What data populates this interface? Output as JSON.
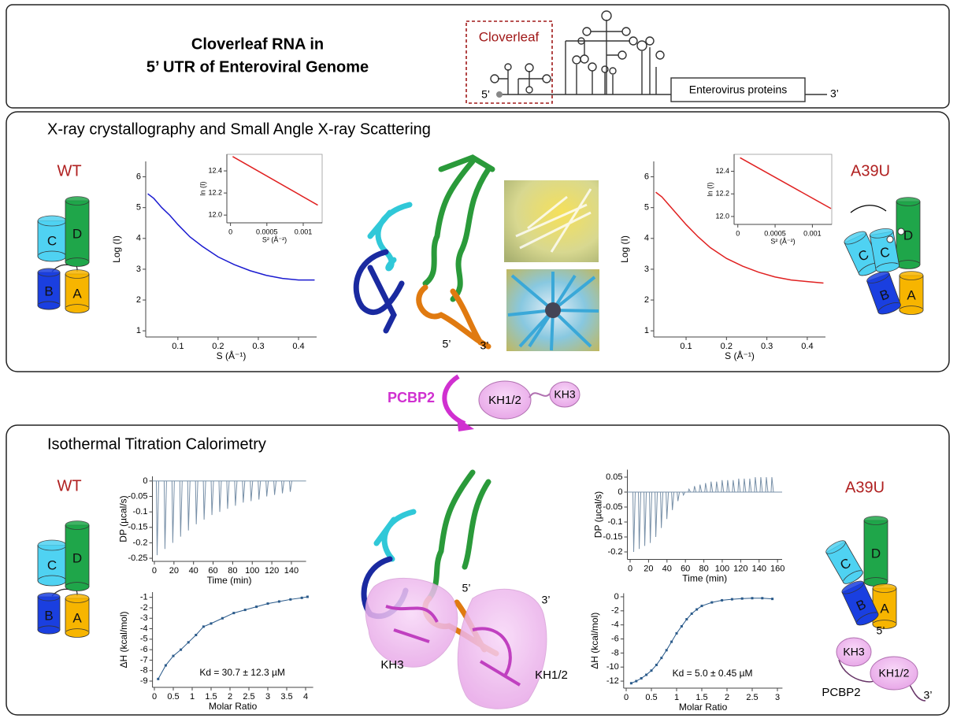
{
  "header": {
    "title_line1": "Cloverleaf RNA in",
    "title_line2": "5’ UTR of Enteroviral Genome",
    "schematic": {
      "cloverleaf": "Cloverleaf",
      "five_prime": "5’",
      "proteins": "Enterovirus proteins",
      "three_prime": "3’"
    }
  },
  "saxs_panel": {
    "title": "X-ray crystallography and Small Angle X-ray Scattering",
    "wt": {
      "label": "WT",
      "cartoon": [
        "C",
        "D",
        "B",
        "A"
      ]
    },
    "mutant": {
      "label": "A39U",
      "cartoon": [
        "C",
        "C",
        "D",
        "B",
        "A"
      ]
    },
    "structure": {
      "five_prime": "5’",
      "three_prime": "3’"
    },
    "plots": [
      {
        "type": "line",
        "xlabel": "S (Å⁻¹)",
        "ylabel": "Log (I)",
        "xlim": [
          0.02,
          0.445
        ],
        "ylim": [
          0.8,
          6.5
        ],
        "xticks": [
          0.1,
          0.2,
          0.3,
          0.4
        ],
        "yticks": [
          1,
          2,
          3,
          4,
          5,
          6
        ],
        "color": "#1a1ad0",
        "x": [
          0.025,
          0.04,
          0.06,
          0.08,
          0.1,
          0.13,
          0.16,
          0.2,
          0.24,
          0.28,
          0.32,
          0.36,
          0.4,
          0.44
        ],
        "y": [
          5.45,
          5.3,
          5.0,
          4.75,
          4.45,
          4.05,
          3.75,
          3.4,
          3.15,
          2.95,
          2.8,
          2.7,
          2.65,
          2.65
        ]
      },
      {
        "type": "line",
        "xlabel": "S² (Å⁻²)",
        "ylabel": "ln (I)",
        "xlim": [
          -5e-05,
          0.00126
        ],
        "ylim": [
          11.93,
          12.55
        ],
        "xticks": [
          0,
          0.0005,
          0.001
        ],
        "yticks": [
          {
            "value": 12,
            "label": "12.0"
          },
          {
            "value": 12.2,
            "label": "12.2"
          },
          {
            "value": 12.4,
            "label": "12.4"
          }
        ],
        "color": "#e02020",
        "x": [
          3e-05,
          0.0012
        ],
        "y": [
          12.53,
          12.09
        ]
      },
      {
        "type": "line",
        "xlabel": "S (Å⁻¹)",
        "ylabel": "Log (I)",
        "xlim": [
          0.02,
          0.445
        ],
        "ylim": [
          0.8,
          6.5
        ],
        "xticks": [
          0.1,
          0.2,
          0.3,
          0.4
        ],
        "yticks": [
          1,
          2,
          3,
          4,
          5,
          6
        ],
        "color": "#e02020",
        "x": [
          0.025,
          0.04,
          0.06,
          0.08,
          0.1,
          0.13,
          0.16,
          0.2,
          0.24,
          0.28,
          0.32,
          0.36,
          0.4,
          0.44
        ],
        "y": [
          5.5,
          5.35,
          5.05,
          4.75,
          4.45,
          4.05,
          3.7,
          3.35,
          3.1,
          2.9,
          2.75,
          2.65,
          2.6,
          2.55
        ]
      },
      {
        "type": "line",
        "xlabel": "S² (Å⁻²)",
        "ylabel": "ln (I)",
        "xlim": [
          -5e-05,
          0.00126
        ],
        "ylim": [
          11.93,
          12.55
        ],
        "xticks": [
          0,
          0.0005,
          0.001
        ],
        "yticks": [
          {
            "value": 12,
            "label": "12.0"
          },
          {
            "value": 12.2,
            "label": "12.2"
          },
          {
            "value": 12.4,
            "label": "12.4"
          }
        ],
        "color": "#e02020",
        "x": [
          3e-05,
          0.00125
        ],
        "y": [
          12.52,
          12.07
        ]
      }
    ]
  },
  "binding": {
    "protein": "PCBP2",
    "domains": [
      "KH1/2",
      "KH3"
    ]
  },
  "itc_panel": {
    "title": "Isothermal Titration Calorimetry",
    "wt": {
      "label": "WT",
      "cartoon": [
        "C",
        "D",
        "B",
        "A"
      ]
    },
    "mutant": {
      "label": "A39U",
      "cartoon": [
        "C",
        "D",
        "B",
        "A",
        "5’",
        "KH3",
        "KH1/2",
        "PCBP2",
        "3’"
      ]
    },
    "structure": {
      "five_prime": "5’",
      "three_prime": "3’",
      "kh3": "KH3",
      "kh12": "KH1/2"
    },
    "plots": [
      {
        "type": "spikes",
        "xlabel": "Time (min)",
        "ylabel": "DP (µcal/s)",
        "xlim": [
          -2,
          155
        ],
        "ylim": [
          -0.26,
          0.015
        ],
        "xticks": [
          0,
          20,
          40,
          60,
          80,
          100,
          120,
          140
        ],
        "yticks": [
          0,
          -0.05,
          -0.1,
          -0.15,
          -0.2,
          -0.25
        ],
        "color": "#7890a8",
        "x": [
          2,
          10,
          18,
          26,
          34,
          42,
          50,
          58,
          66,
          74,
          82,
          90,
          98,
          106,
          114,
          122,
          130,
          138
        ],
        "y": [
          -0.24,
          -0.22,
          -0.2,
          -0.18,
          -0.16,
          -0.14,
          -0.125,
          -0.11,
          -0.1,
          -0.09,
          -0.08,
          -0.07,
          -0.065,
          -0.06,
          -0.05,
          -0.045,
          -0.04,
          -0.035
        ]
      },
      {
        "type": "scatter",
        "xlabel": "Molar Ratio",
        "ylabel": "ΔH (kcal/mol)",
        "xlim": [
          -0.05,
          4.2
        ],
        "ylim": [
          -9.6,
          -0.5
        ],
        "xticks": [
          0,
          0.5,
          1,
          1.5,
          2,
          2.5,
          3,
          3.5,
          4
        ],
        "yticks": [
          -1,
          -2,
          -3,
          -4,
          -5,
          -6,
          -7,
          -8,
          -9
        ],
        "color": "#2a5a8a",
        "annotation": "Kd = 30.7 ± 12.3 µM",
        "x": [
          0.1,
          0.3,
          0.5,
          0.7,
          0.9,
          1.1,
          1.3,
          1.5,
          1.8,
          2.1,
          2.4,
          2.7,
          3,
          3.3,
          3.6,
          3.9,
          4.05
        ],
        "y": [
          -8.8,
          -7.5,
          -6.6,
          -6,
          -5.3,
          -4.6,
          -3.8,
          -3.5,
          -3,
          -2.5,
          -2.2,
          -1.9,
          -1.6,
          -1.4,
          -1.2,
          -1.05,
          -0.95
        ]
      },
      {
        "type": "spikes",
        "xlabel": "Time (min)",
        "ylabel": "DP (µcal/s)",
        "xlim": [
          -3,
          165
        ],
        "ylim": [
          -0.225,
          0.075
        ],
        "xticks": [
          0,
          20,
          40,
          60,
          80,
          100,
          120,
          140,
          160
        ],
        "yticks": [
          0.05,
          0,
          -0.05,
          -0.1,
          -0.15,
          -0.2
        ],
        "color": "#7890a8",
        "x": [
          3,
          9,
          15,
          21,
          27,
          33,
          39,
          45,
          51,
          57,
          63,
          69,
          75,
          81,
          87,
          93,
          99,
          105,
          111,
          117,
          123,
          129,
          135,
          141,
          147,
          153
        ],
        "y": [
          -0.2,
          -0.19,
          -0.18,
          -0.17,
          -0.15,
          -0.12,
          -0.09,
          -0.06,
          -0.03,
          -0.01,
          0.01,
          0.02,
          0.025,
          0.03,
          0.035,
          0.035,
          0.04,
          0.04,
          0.04,
          0.045,
          0.045,
          0.045,
          0.05,
          0.05,
          0.05,
          0.05
        ]
      },
      {
        "type": "scatter",
        "xlabel": "Molar Ratio",
        "ylabel": "ΔH (kcal/mol)",
        "xlim": [
          -0.05,
          3.1
        ],
        "ylim": [
          -13,
          0.5
        ],
        "xticks": [
          0,
          0.5,
          1,
          1.5,
          2,
          2.5,
          3
        ],
        "yticks": [
          0,
          -2,
          -4,
          -6,
          -8,
          -10,
          -12
        ],
        "color": "#2a5a8a",
        "annotation": "Kd = 5.0 ± 0.45 µM",
        "x": [
          0.1,
          0.2,
          0.3,
          0.4,
          0.5,
          0.6,
          0.7,
          0.8,
          0.9,
          1.0,
          1.1,
          1.2,
          1.3,
          1.4,
          1.5,
          1.7,
          1.9,
          2.1,
          2.3,
          2.5,
          2.7,
          2.9
        ],
        "y": [
          -12.3,
          -12,
          -11.6,
          -11.1,
          -10.5,
          -9.7,
          -8.7,
          -7.6,
          -6.4,
          -5.2,
          -4.2,
          -3.2,
          -2.4,
          -1.8,
          -1.3,
          -0.8,
          -0.5,
          -0.35,
          -0.25,
          -0.2,
          -0.2,
          -0.3
        ]
      }
    ]
  }
}
